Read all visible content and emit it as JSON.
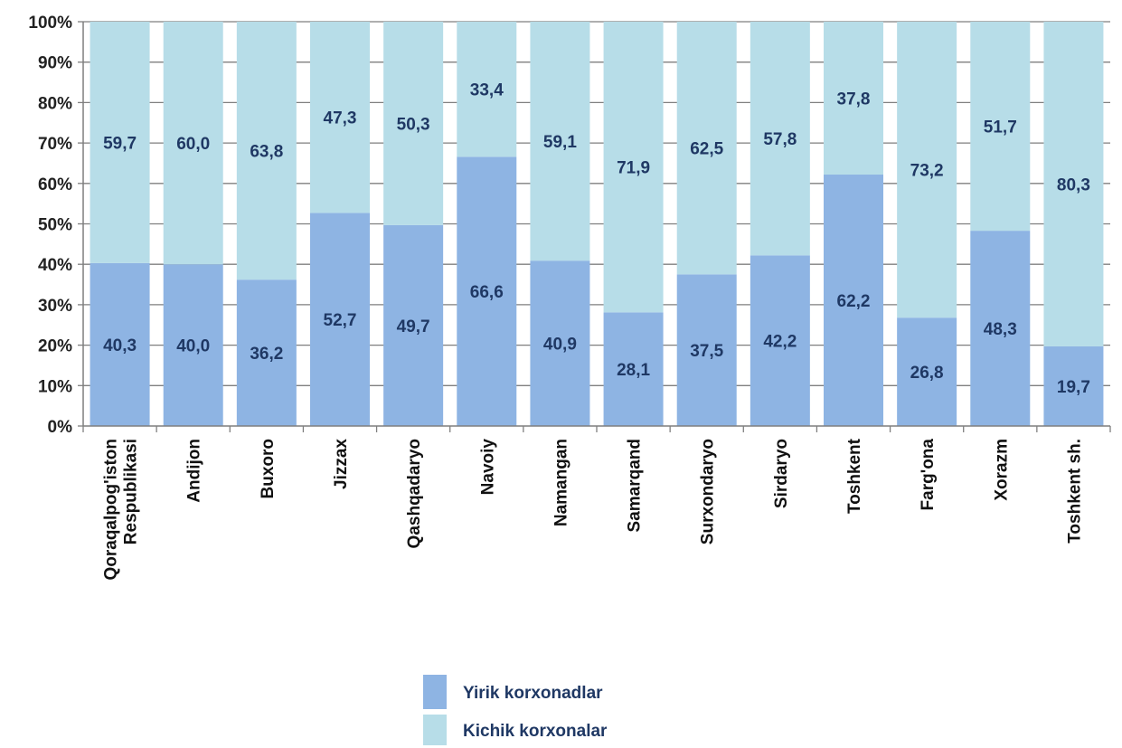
{
  "chart_data": {
    "type": "bar",
    "stacked": "percent",
    "categories": [
      [
        "Qoraqalpog'iston",
        "Respublikasi"
      ],
      [
        "Andijon"
      ],
      [
        "Buxoro"
      ],
      [
        "Jizzax"
      ],
      [
        "Qashqadaryo"
      ],
      [
        "Navoiy"
      ],
      [
        "Namangan"
      ],
      [
        "Samarqand"
      ],
      [
        "Surxondaryo"
      ],
      [
        "Sirdaryo"
      ],
      [
        "Toshkent"
      ],
      [
        "Farg'ona"
      ],
      [
        "Xorazm"
      ],
      [
        "Toshkent sh."
      ]
    ],
    "series": [
      {
        "name": "Yirik korxonadlar",
        "color": "#8eb4e3",
        "values": [
          40.3,
          40.0,
          36.2,
          52.7,
          49.7,
          66.6,
          40.9,
          28.1,
          37.5,
          42.2,
          62.2,
          26.8,
          48.3,
          19.7
        ],
        "labels": [
          "40,3",
          "40,0",
          "36,2",
          "52,7",
          "49,7",
          "66,6",
          "40,9",
          "28,1",
          "37,5",
          "42,2",
          "62,2",
          "26,8",
          "48,3",
          "19,7"
        ]
      },
      {
        "name": "Kichik korxonalar",
        "color": "#b7dde8",
        "values": [
          59.7,
          60.0,
          63.8,
          47.3,
          50.3,
          33.4,
          59.1,
          71.9,
          62.5,
          57.8,
          37.8,
          73.2,
          51.7,
          80.3
        ],
        "labels": [
          "59,7",
          "60,0",
          "63,8",
          "47,3",
          "50,3",
          "33,4",
          "59,1",
          "71,9",
          "62,5",
          "57,8",
          "37,8",
          "73,2",
          "51,7",
          "80,3"
        ]
      }
    ],
    "y_ticks": [
      "0%",
      "10%",
      "20%",
      "30%",
      "40%",
      "50%",
      "60%",
      "70%",
      "80%",
      "90%",
      "100%"
    ],
    "ylim": [
      0,
      100
    ],
    "grid": true,
    "legend_position": "bottom-center"
  }
}
